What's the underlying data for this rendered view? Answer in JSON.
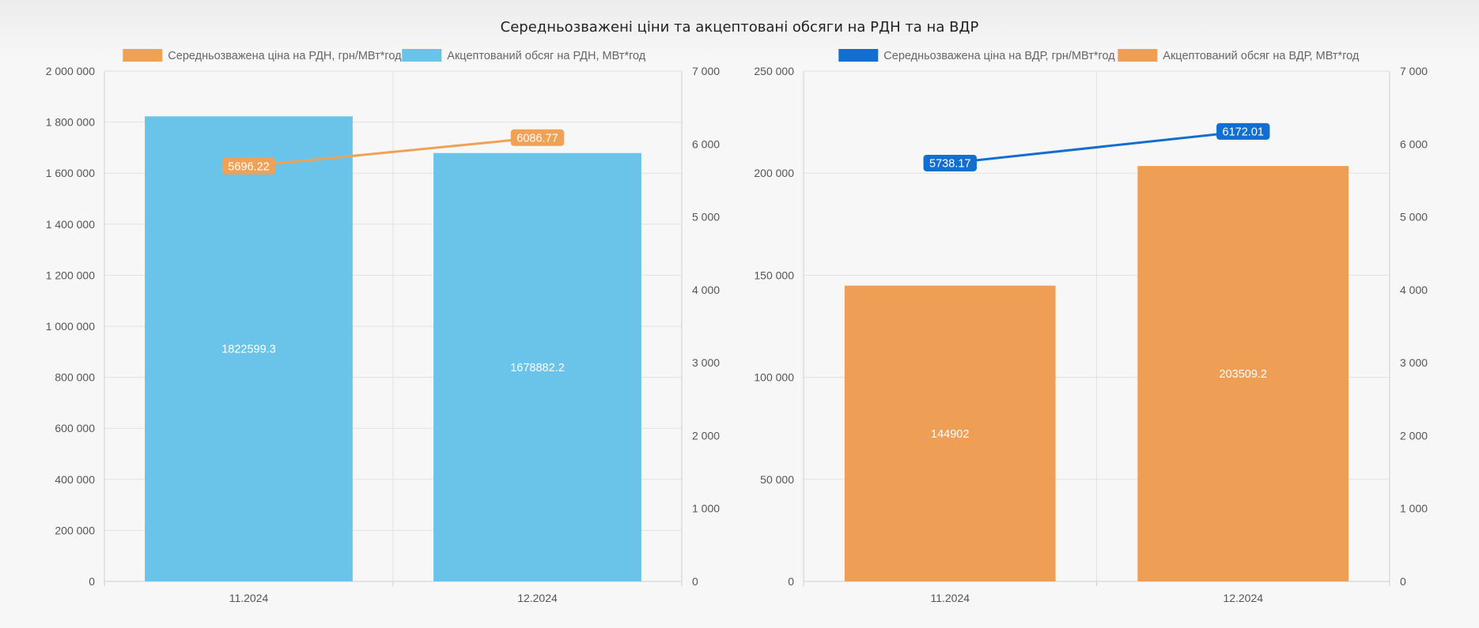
{
  "title": "Середньозважені ціни та акцептовані обсяги на РДН та на ВДР",
  "chart_data": [
    {
      "type": "bar",
      "categories": [
        "11.2024",
        "12.2024"
      ],
      "series": [
        {
          "name": "Середньозважена ціна на РДН, грн/МВт*год",
          "type": "line",
          "axis": "right",
          "color": "#efa156",
          "values": [
            5696.22,
            6086.77
          ],
          "labels": [
            "5696.22",
            "6086.77"
          ]
        },
        {
          "name": "Акцептований обсяг на РДН, МВт*год",
          "type": "bar",
          "axis": "left",
          "color": "#6ac4ea",
          "values": [
            1822599.3,
            1678882.2
          ],
          "labels": [
            "1822599.3",
            "1678882.2"
          ]
        }
      ],
      "y_left": {
        "range": [
          0,
          2000000
        ],
        "ticks": [
          0,
          200000,
          400000,
          600000,
          800000,
          1000000,
          1200000,
          1400000,
          1600000,
          1800000,
          2000000
        ],
        "tick_labels": [
          "0",
          "200 000",
          "400 000",
          "600 000",
          "800 000",
          "1 000 000",
          "1 200 000",
          "1 400 000",
          "1 600 000",
          "1 800 000",
          "2 000 000"
        ]
      },
      "y_right": {
        "range": [
          0,
          7000
        ],
        "ticks": [
          0,
          1000,
          2000,
          3000,
          4000,
          5000,
          6000,
          7000
        ],
        "tick_labels": [
          "0",
          "1 000",
          "2 000",
          "3 000",
          "4 000",
          "5 000",
          "6 000",
          "7 000"
        ]
      },
      "grid": true,
      "legend": "top"
    },
    {
      "type": "bar",
      "categories": [
        "11.2024",
        "12.2024"
      ],
      "series": [
        {
          "name": "Середньозважена ціна на ВДР, грн/МВт*год",
          "type": "line",
          "axis": "right",
          "color": "#136fcf",
          "values": [
            5738.17,
            6172.01
          ],
          "labels": [
            "5738.17",
            "6172.01"
          ]
        },
        {
          "name": "Акцептований обсяг на ВДР, МВт*год",
          "type": "bar",
          "axis": "left",
          "color": "#ef9f55",
          "values": [
            144902,
            203509.2
          ],
          "labels": [
            "144902",
            "203509.2"
          ]
        }
      ],
      "y_left": {
        "range": [
          0,
          250000
        ],
        "ticks": [
          0,
          50000,
          100000,
          150000,
          200000,
          250000
        ],
        "tick_labels": [
          "0",
          "50 000",
          "100 000",
          "150 000",
          "200 000",
          "250 000"
        ]
      },
      "y_right": {
        "range": [
          0,
          7000
        ],
        "ticks": [
          0,
          1000,
          2000,
          3000,
          4000,
          5000,
          6000,
          7000
        ],
        "tick_labels": [
          "0",
          "1 000",
          "2 000",
          "3 000",
          "4 000",
          "5 000",
          "6 000",
          "7 000"
        ]
      },
      "grid": true,
      "legend": "top"
    }
  ]
}
